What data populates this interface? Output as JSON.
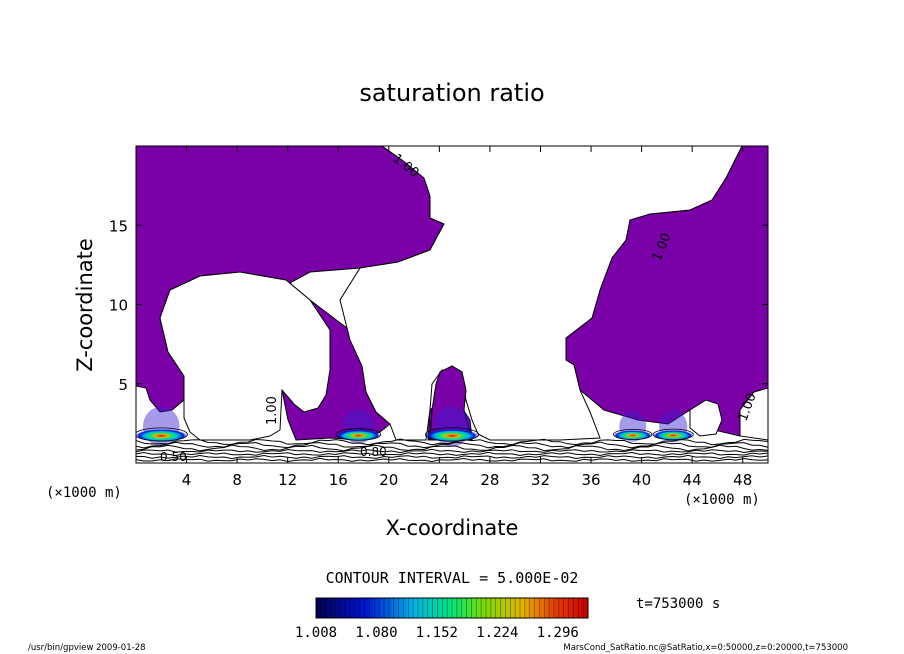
{
  "chart_data": {
    "type": "heatmap",
    "title": "saturation ratio",
    "xlabel": "X-coordinate",
    "ylabel": "Z-coordinate",
    "x_unit": "(×1000 m)",
    "z_unit": "(×1000 m)",
    "xlim": [
      0,
      50
    ],
    "ylim": [
      0,
      20
    ],
    "x_ticks": [
      4,
      8,
      12,
      16,
      20,
      24,
      28,
      32,
      36,
      40,
      44,
      48
    ],
    "y_ticks": [
      5,
      10,
      15
    ],
    "contour_interval_text": "CONTOUR INTERVAL = 5.000E-02",
    "contour_labels": [
      "1.00",
      "1.00",
      "1.00",
      "1.00",
      "0.50",
      "0.80"
    ],
    "colorbar": {
      "ticks": [
        "1.008",
        "1.080",
        "1.152",
        "1.224",
        "1.296"
      ],
      "min": 1.008,
      "max": 1.332
    },
    "time_text": "t=753000 s",
    "footer_left": "/usr/bin/gpview  2009-01-28",
    "footer_right": "MarsCond_SatRatio.nc@SatRatio,x=0:50000,z=0:20000,t=753000",
    "fill_color": "#7a00a8",
    "cores": [
      {
        "x": 2.0,
        "z": 1.8,
        "amplitude": 1.29
      },
      {
        "x": 17.6,
        "z": 1.8,
        "amplitude": 1.2
      },
      {
        "x": 25.0,
        "z": 1.8,
        "amplitude": 1.3
      },
      {
        "x": 39.3,
        "z": 1.8,
        "amplitude": 1.13
      },
      {
        "x": 42.5,
        "z": 1.8,
        "amplitude": 1.15
      }
    ]
  }
}
